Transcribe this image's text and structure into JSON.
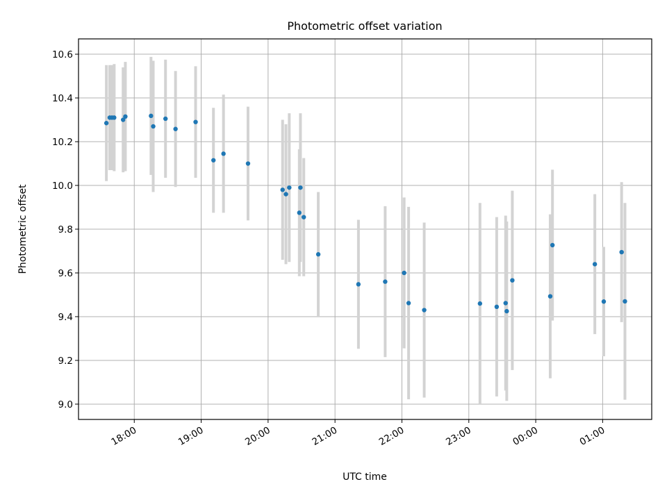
{
  "chart_data": {
    "type": "scatter",
    "title": "Photometric offset variation",
    "xlabel": "UTC time",
    "ylabel": "Photometric offset",
    "x_unit": "UTC time (HH:MM, session spans midnight)",
    "xlim": [
      "17:10",
      "01:44"
    ],
    "ylim": [
      8.93,
      10.67
    ],
    "grid": true,
    "x_ticks": [
      "18:00",
      "19:00",
      "20:00",
      "21:00",
      "22:00",
      "23:00",
      "00:00",
      "01:00"
    ],
    "y_ticks": [
      "9.0",
      "9.2",
      "9.4",
      "9.6",
      "9.8",
      "10.0",
      "10.2",
      "10.4",
      "10.6"
    ],
    "colors": {
      "points": "#1f77b4",
      "error_bars": "#d3d3d3",
      "grid": "#b0b0b0"
    },
    "series": [
      {
        "x": [
          "17:35",
          "17:38",
          "17:40",
          "17:42",
          "17:50",
          "17:52",
          "18:15",
          "18:17",
          "18:28",
          "18:37",
          "18:55",
          "19:11",
          "19:20",
          "19:42",
          "20:13",
          "20:16",
          "20:19",
          "20:28",
          "20:29",
          "20:32",
          "20:45",
          "21:21",
          "21:45",
          "22:02",
          "22:06",
          "22:20",
          "23:10",
          "23:25",
          "23:33",
          "23:34",
          "23:39",
          "00:13",
          "00:15",
          "00:53",
          "01:01",
          "01:17",
          "01:20"
        ],
        "y": [
          10.285,
          10.31,
          10.31,
          10.31,
          10.3,
          10.315,
          10.318,
          10.27,
          10.305,
          10.258,
          10.29,
          10.115,
          10.145,
          10.1,
          9.98,
          9.96,
          9.99,
          9.875,
          9.99,
          9.855,
          9.685,
          9.548,
          9.56,
          9.6,
          9.462,
          9.43,
          9.46,
          9.445,
          9.462,
          9.425,
          9.566,
          9.493,
          9.727,
          9.64,
          9.469,
          9.695,
          9.47
        ],
        "y_err": [
          0.265,
          0.24,
          0.24,
          0.245,
          0.24,
          0.25,
          0.27,
          0.3,
          0.27,
          0.265,
          0.255,
          0.24,
          0.27,
          0.26,
          0.32,
          0.32,
          0.34,
          0.29,
          0.34,
          0.27,
          0.285,
          0.295,
          0.345,
          0.345,
          0.44,
          0.4,
          0.46,
          0.41,
          0.4,
          0.41,
          0.41,
          0.375,
          0.345,
          0.32,
          0.25,
          0.32,
          0.45
        ]
      }
    ]
  }
}
